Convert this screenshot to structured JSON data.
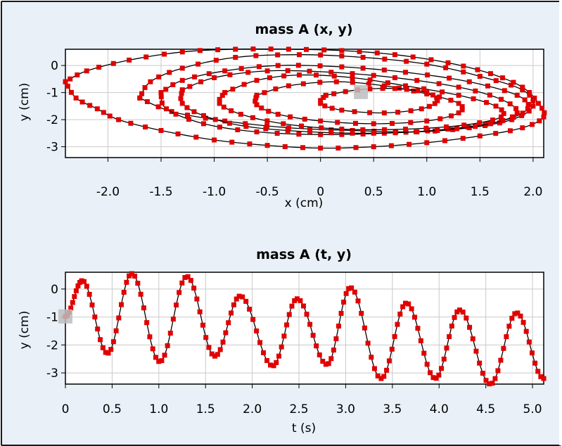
{
  "colors": {
    "panel_bg": "#e9f0f8",
    "plot_bg": "#ffffff",
    "grid": "#c9c9c9",
    "curve": "#000000",
    "marker": "#e00000",
    "current_marker": "#bdbdbd"
  },
  "chart_data": [
    {
      "type": "line",
      "title": "mass A (x, y)",
      "xlabel": "x (cm)",
      "ylabel": "y (cm)",
      "xlim": [
        -2.4,
        2.1
      ],
      "ylim": [
        -3.4,
        0.6
      ],
      "xticks": [
        -2.0,
        -1.5,
        -1.0,
        -0.5,
        0,
        0.5,
        1.0,
        1.5,
        2.0
      ],
      "xtick_labels": [
        "-2.0",
        "-1.5",
        "-1.0",
        "-0.5",
        "0",
        "0.5",
        "1.0",
        "1.5",
        "2.0"
      ],
      "yticks": [
        0,
        -1,
        -2,
        -3
      ],
      "ytick_labels": [
        "0",
        "-1",
        "-2",
        "-3"
      ],
      "grid": true,
      "series": [
        {
          "markers": "square",
          "points": [
            [
              -2.4,
              -0.6
            ],
            [
              -2.2,
              -0.2
            ],
            [
              -1.8,
              0.2
            ],
            [
              -1.3,
              0.5
            ],
            [
              -0.8,
              0.6
            ],
            [
              -0.3,
              0.6
            ],
            [
              0.2,
              0.55
            ],
            [
              0.7,
              0.4
            ],
            [
              1.2,
              0.1
            ],
            [
              1.6,
              -0.3
            ],
            [
              1.9,
              -0.8
            ],
            [
              2.05,
              -1.4
            ],
            [
              2.1,
              -1.9
            ],
            [
              1.9,
              -2.3
            ],
            [
              1.5,
              -2.6
            ],
            [
              1.0,
              -2.85
            ],
            [
              0.5,
              -3.0
            ],
            [
              0.0,
              -3.05
            ],
            [
              -0.5,
              -2.95
            ],
            [
              -1.0,
              -2.75
            ],
            [
              -1.5,
              -2.4
            ],
            [
              -1.9,
              -2.0
            ],
            [
              -2.1,
              -1.6
            ],
            [
              -2.3,
              -1.2
            ],
            [
              -2.4,
              -0.6
            ]
          ]
        },
        {
          "markers": "square",
          "points": [
            [
              -1.7,
              -1.2
            ],
            [
              -1.6,
              -0.6
            ],
            [
              -1.3,
              -0.1
            ],
            [
              -0.8,
              0.3
            ],
            [
              -0.2,
              0.4
            ],
            [
              0.4,
              0.3
            ],
            [
              1.0,
              0.05
            ],
            [
              1.5,
              -0.4
            ],
            [
              1.9,
              -0.9
            ],
            [
              2.0,
              -1.5
            ],
            [
              1.8,
              -2.0
            ],
            [
              1.4,
              -2.3
            ],
            [
              0.9,
              -2.45
            ],
            [
              0.3,
              -2.4
            ],
            [
              -0.3,
              -2.3
            ],
            [
              -0.9,
              -2.05
            ],
            [
              -1.4,
              -1.7
            ],
            [
              -1.7,
              -1.2
            ]
          ]
        },
        {
          "markers": "square",
          "points": [
            [
              -1.5,
              -1.0
            ],
            [
              -1.3,
              -0.55
            ],
            [
              -0.9,
              -0.2
            ],
            [
              -0.4,
              0.0
            ],
            [
              0.2,
              -0.05
            ],
            [
              0.8,
              -0.25
            ],
            [
              1.4,
              -0.6
            ],
            [
              1.85,
              -1.1
            ],
            [
              1.95,
              -1.6
            ],
            [
              1.7,
              -2.05
            ],
            [
              1.2,
              -2.35
            ],
            [
              0.6,
              -2.5
            ],
            [
              0.0,
              -2.55
            ],
            [
              -0.6,
              -2.45
            ],
            [
              -1.1,
              -2.15
            ],
            [
              -1.45,
              -1.6
            ],
            [
              -1.5,
              -1.0
            ]
          ]
        },
        {
          "markers": "square",
          "points": [
            [
              -1.3,
              -0.9
            ],
            [
              -1.0,
              -0.45
            ],
            [
              -0.5,
              -0.2
            ],
            [
              0.1,
              -0.25
            ],
            [
              0.7,
              -0.45
            ],
            [
              1.3,
              -0.8
            ],
            [
              1.7,
              -1.25
            ],
            [
              1.85,
              -1.75
            ],
            [
              1.6,
              -2.15
            ],
            [
              1.1,
              -2.4
            ],
            [
              0.5,
              -2.5
            ],
            [
              -0.1,
              -2.45
            ],
            [
              -0.7,
              -2.25
            ],
            [
              -1.1,
              -1.85
            ],
            [
              -1.3,
              -1.4
            ],
            [
              -1.3,
              -0.9
            ]
          ]
        },
        {
          "markers": "square",
          "points": [
            [
              -0.9,
              -1.0
            ],
            [
              -0.6,
              -0.55
            ],
            [
              -0.2,
              -0.35
            ],
            [
              0.3,
              -0.45
            ],
            [
              0.8,
              -0.75
            ],
            [
              1.3,
              -1.1
            ],
            [
              1.65,
              -1.5
            ],
            [
              1.7,
              -1.9
            ],
            [
              1.35,
              -2.2
            ],
            [
              0.8,
              -2.35
            ],
            [
              0.2,
              -2.35
            ],
            [
              -0.35,
              -2.15
            ],
            [
              -0.75,
              -1.8
            ],
            [
              -0.95,
              -1.4
            ],
            [
              -0.9,
              -1.0
            ]
          ]
        },
        {
          "markers": "square",
          "points": [
            [
              -0.6,
              -1.1
            ],
            [
              -0.3,
              -0.75
            ],
            [
              0.15,
              -0.6
            ],
            [
              0.6,
              -0.75
            ],
            [
              1.0,
              -1.05
            ],
            [
              1.3,
              -1.4
            ],
            [
              1.3,
              -1.75
            ],
            [
              1.0,
              -2.05
            ],
            [
              0.5,
              -2.15
            ],
            [
              0.0,
              -2.05
            ],
            [
              -0.4,
              -1.8
            ],
            [
              -0.6,
              -1.45
            ],
            [
              -0.6,
              -1.1
            ]
          ]
        },
        {
          "markers": "square",
          "points": [
            [
              0.05,
              -1.1
            ],
            [
              0.35,
              -0.9
            ],
            [
              0.7,
              -0.85
            ],
            [
              1.0,
              -1.0
            ],
            [
              1.1,
              -1.3
            ],
            [
              0.95,
              -1.6
            ],
            [
              0.6,
              -1.75
            ],
            [
              0.2,
              -1.65
            ],
            [
              0.0,
              -1.4
            ],
            [
              0.05,
              -1.1
            ]
          ]
        }
      ],
      "current_point": [
        0.38,
        -0.98
      ]
    },
    {
      "type": "line",
      "title": "mass A (t, y)",
      "xlabel": "t (s)",
      "ylabel": "y (cm)",
      "xlim": [
        0,
        5.12
      ],
      "ylim": [
        -3.4,
        0.6
      ],
      "xticks": [
        0,
        0.5,
        1.0,
        1.5,
        2.0,
        2.5,
        3.0,
        3.5,
        4.0,
        4.5,
        5.0
      ],
      "xtick_labels": [
        "0",
        "0.5",
        "1.0",
        "1.5",
        "2.0",
        "2.5",
        "3.0",
        "3.5",
        "4.0",
        "4.5",
        "5.0"
      ],
      "yticks": [
        0,
        -1,
        -2,
        -3
      ],
      "ytick_labels": [
        "0",
        "-1",
        "-2",
        "-3"
      ],
      "grid": true,
      "series": [
        {
          "markers": "square",
          "peaks": [
            [
              0.18,
              0.3
            ],
            [
              0.71,
              0.55
            ],
            [
              1.3,
              0.45
            ],
            [
              1.87,
              -0.25
            ],
            [
              2.48,
              -0.35
            ],
            [
              3.05,
              0.05
            ],
            [
              3.65,
              -0.5
            ],
            [
              4.22,
              -0.75
            ],
            [
              4.83,
              -0.85
            ]
          ],
          "troughs": [
            [
              0.45,
              -2.3
            ],
            [
              1.01,
              -2.6
            ],
            [
              1.6,
              -2.4
            ],
            [
              2.22,
              -2.75
            ],
            [
              2.8,
              -2.7
            ],
            [
              3.38,
              -3.2
            ],
            [
              3.96,
              -3.2
            ],
            [
              4.55,
              -3.4
            ]
          ],
          "start": [
            0.0,
            -0.98
          ],
          "end": [
            5.12,
            -3.2
          ]
        }
      ],
      "current_point": [
        0.0,
        -0.98
      ]
    }
  ]
}
